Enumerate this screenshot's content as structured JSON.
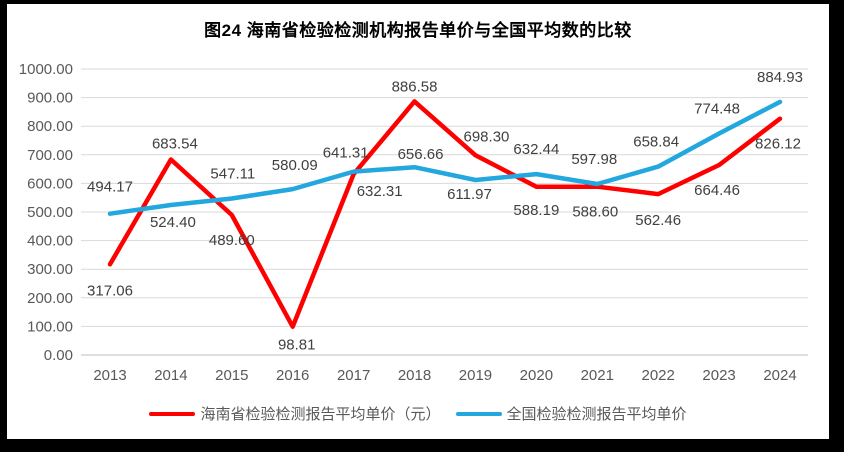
{
  "title": "图24  海南省检验检测机构报告单价与全国平均数的比较",
  "chart_data": {
    "type": "line",
    "title": "图24  海南省检验检测机构报告单价与全国平均数的比较",
    "categories": [
      "2013",
      "2014",
      "2015",
      "2016",
      "2017",
      "2018",
      "2019",
      "2020",
      "2021",
      "2022",
      "2023",
      "2024"
    ],
    "series": [
      {
        "name": "海南省检验检测报告平均单价（元）",
        "color": "#FF0000",
        "values": [
          317.06,
          683.54,
          489.6,
          98.81,
          632.31,
          886.58,
          698.3,
          588.19,
          588.6,
          562.46,
          664.46,
          826.12
        ],
        "label_offsets": [
          [
            0,
            26
          ],
          [
            4,
            -16
          ],
          [
            0,
            25
          ],
          [
            4,
            18
          ],
          [
            26,
            17
          ],
          [
            0,
            -15
          ],
          [
            11,
            -19
          ],
          [
            0,
            23
          ],
          [
            -2,
            25
          ],
          [
            0,
            26
          ],
          [
            -2,
            25
          ],
          [
            -2,
            25
          ]
        ]
      },
      {
        "name": "全国检验检测报告平均单价",
        "color": "#22A7DF",
        "values": [
          494.17,
          524.4,
          547.11,
          580.09,
          641.31,
          656.66,
          611.97,
          632.44,
          597.98,
          658.84,
          774.48,
          884.93
        ],
        "label_offsets": [
          [
            0,
            -27
          ],
          [
            2,
            17
          ],
          [
            1,
            -25
          ],
          [
            2,
            -24
          ],
          [
            -8,
            -19
          ],
          [
            6,
            -13
          ],
          [
            -6,
            14
          ],
          [
            0,
            -25
          ],
          [
            -3,
            -25
          ],
          [
            -2,
            -25
          ],
          [
            -2,
            -25
          ],
          [
            0,
            -25
          ]
        ]
      }
    ],
    "xlabel": "",
    "ylabel": "",
    "ylim": [
      0,
      1000
    ],
    "ytick_step": 100,
    "ytick_decimals": 2,
    "value_label_decimals": 2,
    "grid": true,
    "legend_position": "bottom"
  },
  "colors": {
    "frame": "#000000",
    "plot_background": "#FFFFFF",
    "gridline": "#D9D9D9",
    "axis_line": "#BFBFBF",
    "tick_text": "#595959",
    "data_label_text": "#404040",
    "title_text": "#000000"
  }
}
